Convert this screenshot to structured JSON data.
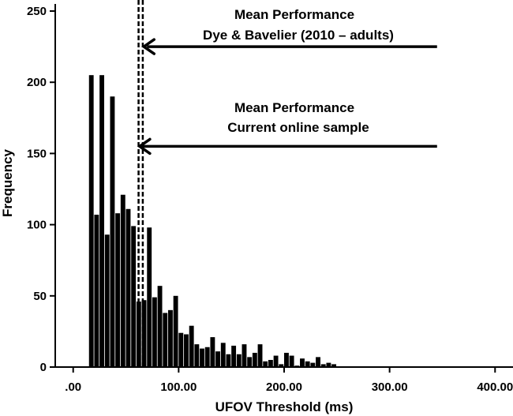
{
  "chart_data": {
    "type": "bar",
    "xlabel": "UFOV Threshold (ms)",
    "ylabel": "Frequency",
    "xlim": [
      -17,
      417
    ],
    "ylim": [
      0,
      255
    ],
    "x_ticks": [
      {
        "value": 0,
        "label": ".00"
      },
      {
        "value": 100,
        "label": "100.00"
      },
      {
        "value": 200,
        "label": "200.00"
      },
      {
        "value": 300,
        "label": "300.00"
      },
      {
        "value": 400,
        "label": "400.00"
      }
    ],
    "y_ticks": [
      {
        "value": 0,
        "label": "0"
      },
      {
        "value": 50,
        "label": "50"
      },
      {
        "value": 100,
        "label": "100"
      },
      {
        "value": 150,
        "label": "150"
      },
      {
        "value": 200,
        "label": "200"
      },
      {
        "value": 250,
        "label": "250"
      }
    ],
    "bin_start": 15,
    "bin_width": 5,
    "values": [
      205,
      107,
      205,
      93,
      190,
      108,
      121,
      111,
      99,
      46,
      47,
      98,
      49,
      57,
      38,
      40,
      50,
      24,
      23,
      29,
      16,
      13,
      14,
      21,
      11,
      17,
      9,
      15,
      9,
      16,
      7,
      10,
      16,
      4,
      5,
      8,
      2,
      10,
      8,
      1,
      6,
      4,
      3,
      7,
      2,
      3,
      2,
      0
    ],
    "reference_lines": [
      {
        "x": 62,
        "style": "dashed"
      },
      {
        "x": 66,
        "style": "dashed"
      }
    ],
    "annotations": [
      {
        "lines": [
          "Mean Performance",
          "Dye & Bavelier (2010 – adults)"
        ],
        "arrow_y": 225,
        "arrow_from_x": 345,
        "arrow_to_x": 67
      },
      {
        "lines": [
          "Mean Performance",
          "Current online sample"
        ],
        "arrow_y": 155,
        "arrow_from_x": 345,
        "arrow_to_x": 63
      }
    ]
  }
}
